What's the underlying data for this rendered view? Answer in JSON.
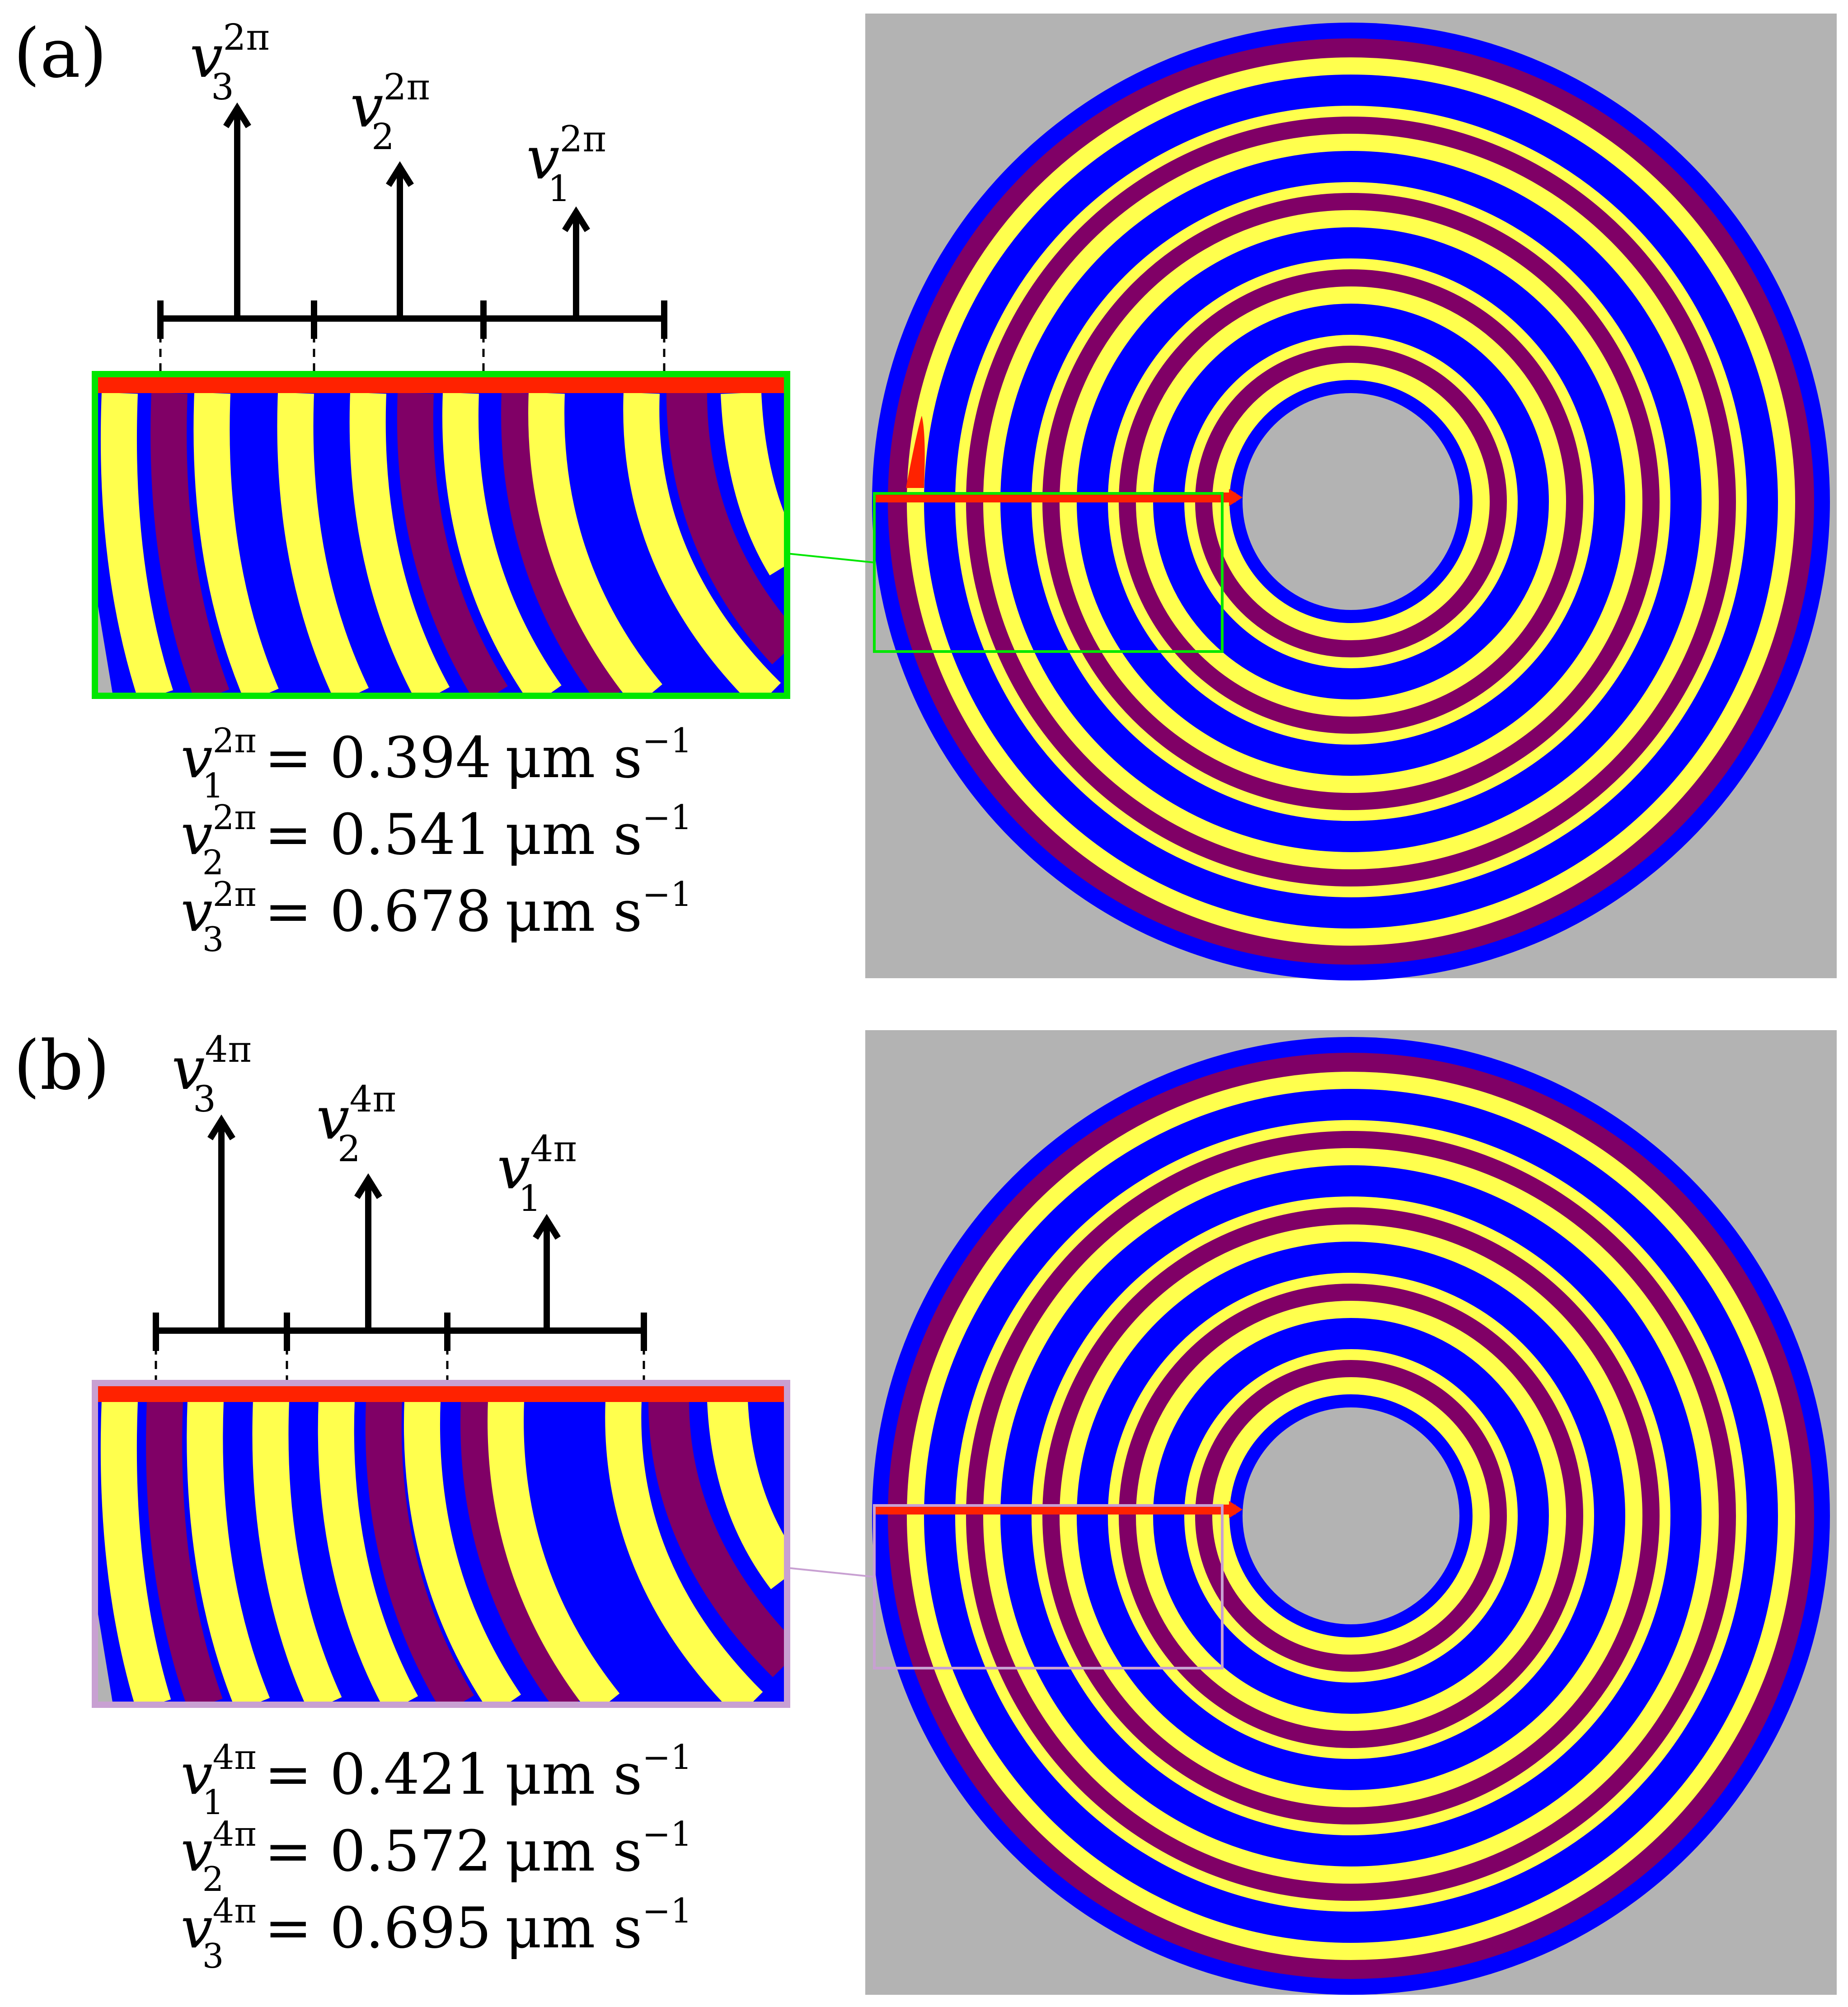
{
  "colors": {
    "background": "#b3b3b3",
    "outer_band": "#0000ff",
    "yellow": "#ffff4d",
    "purple": "#800066",
    "blue": "#0000ff",
    "red": "#ff2200",
    "inset_a_border": "#00e600",
    "inset_b_border": "#c8a0d2",
    "black": "#000000"
  },
  "panels": [
    {
      "id": "a",
      "label": "(a)",
      "superscript": "2π",
      "arrows": [
        {
          "symbol": "v",
          "sub": "3",
          "sup": "2π"
        },
        {
          "symbol": "v",
          "sub": "2",
          "sup": "2π"
        },
        {
          "symbol": "v",
          "sub": "1",
          "sup": "2π"
        }
      ],
      "equations": [
        {
          "symbol": "v",
          "sub": "1",
          "sup": "2π",
          "rhs": "= 0.394",
          "unit": "μm s",
          "unit_exp": "−1"
        },
        {
          "symbol": "v",
          "sub": "2",
          "sup": "2π",
          "rhs": "= 0.541",
          "unit": "μm s",
          "unit_exp": "−1"
        },
        {
          "symbol": "v",
          "sub": "3",
          "sup": "2π",
          "rhs": "= 0.678",
          "unit": "μm s",
          "unit_exp": "−1"
        }
      ],
      "inset_border_color": "#00e600"
    },
    {
      "id": "b",
      "label": "(b)",
      "superscript": "4π",
      "arrows": [
        {
          "symbol": "v",
          "sub": "3",
          "sup": "4π"
        },
        {
          "symbol": "v",
          "sub": "2",
          "sup": "4π"
        },
        {
          "symbol": "v",
          "sub": "1",
          "sup": "4π"
        }
      ],
      "equations": [
        {
          "symbol": "v",
          "sub": "1",
          "sup": "4π",
          "rhs": "= 0.421",
          "unit": "μm s",
          "unit_exp": "−1"
        },
        {
          "symbol": "v",
          "sub": "2",
          "sup": "4π",
          "rhs": "= 0.572",
          "unit": "μm s",
          "unit_exp": "−1"
        },
        {
          "symbol": "v",
          "sub": "3",
          "sup": "4π",
          "rhs": "= 0.695",
          "unit": "μm s",
          "unit_exp": "−1"
        }
      ],
      "inset_border_color": "#c8a0d2"
    }
  ]
}
